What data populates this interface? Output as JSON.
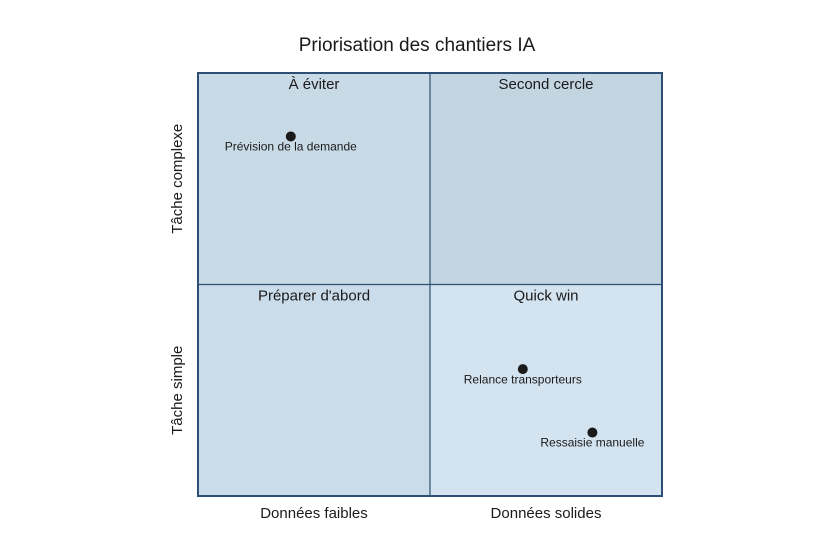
{
  "chart_data": {
    "type": "quadrant",
    "title": "Priorisation des chantiers IA",
    "x_labels": [
      "Données faibles",
      "Données solides"
    ],
    "y_labels": [
      "Tâche simple",
      "Tâche complexe"
    ],
    "quadrants": [
      {
        "name": "À éviter",
        "color": "#c8dae6"
      },
      {
        "name": "Second cercle",
        "color": "#c2d5e1"
      },
      {
        "name": "Préparer d'abord",
        "color": "#cadcea"
      },
      {
        "name": "Quick win",
        "color": "#d3e3ef"
      }
    ],
    "labels": [
      "Prévision de la demande",
      "Relance transporteurs",
      "Ressaisie manuelle"
    ],
    "x": [
      0.2,
      0.7,
      0.85
    ],
    "y": [
      0.85,
      0.3,
      0.15
    ],
    "xlim": [
      0,
      1
    ],
    "ylim": [
      0,
      1
    ],
    "point_color": "#1a1a1a",
    "border_color": "#2c4f73"
  }
}
